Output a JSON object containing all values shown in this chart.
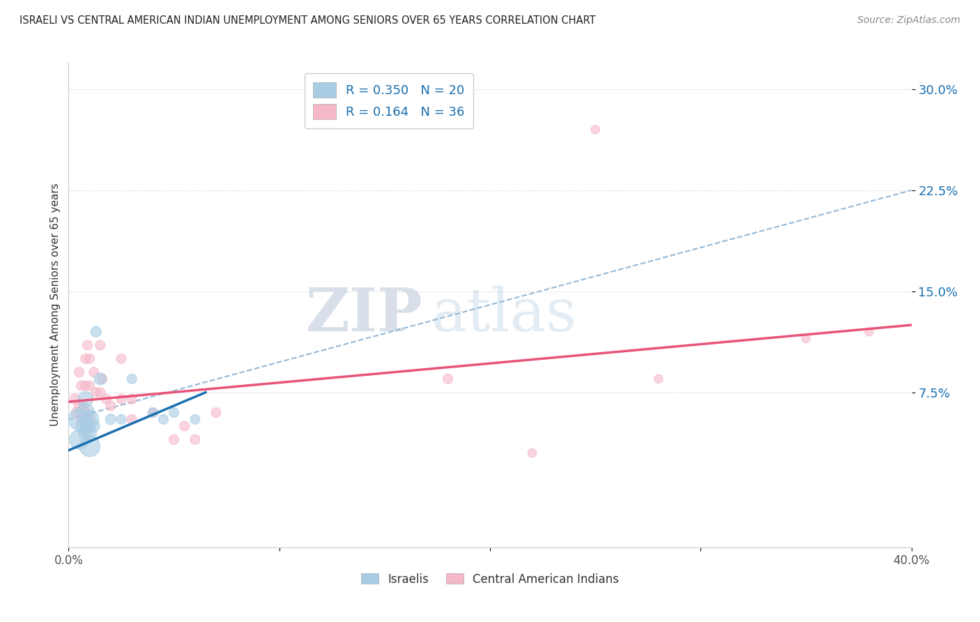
{
  "title": "ISRAELI VS CENTRAL AMERICAN INDIAN UNEMPLOYMENT AMONG SENIORS OVER 65 YEARS CORRELATION CHART",
  "source": "Source: ZipAtlas.com",
  "ylabel": "Unemployment Among Seniors over 65 years",
  "legend_israeli": "R = 0.350   N = 20",
  "legend_cai": "R = 0.164   N = 36",
  "legend_label1": "Israelis",
  "legend_label2": "Central American Indians",
  "xlim": [
    0.0,
    0.4
  ],
  "ylim": [
    -0.04,
    0.32
  ],
  "yticks": [
    0.075,
    0.15,
    0.225,
    0.3
  ],
  "ytick_labels": [
    "7.5%",
    "15.0%",
    "22.5%",
    "30.0%"
  ],
  "xticks": [
    0.0,
    0.1,
    0.2,
    0.3,
    0.4
  ],
  "xtick_labels": [
    "0.0%",
    "",
    "",
    "",
    "40.0%"
  ],
  "blue_scatter_color": "#a8cce4",
  "pink_scatter_color": "#f5b8c8",
  "blue_line_color": "#1a6faf",
  "pink_line_color": "#e8547a",
  "gray_dash_color": "#93b8d8",
  "watermark_zip": "ZIP",
  "watermark_atlas": "atlas",
  "israeli_x": [
    0.005,
    0.005,
    0.007,
    0.008,
    0.008,
    0.008,
    0.009,
    0.01,
    0.01,
    0.01,
    0.012,
    0.013,
    0.015,
    0.02,
    0.025,
    0.03,
    0.04,
    0.045,
    0.05,
    0.06
  ],
  "israeli_y": [
    0.055,
    0.04,
    0.05,
    0.045,
    0.06,
    0.07,
    0.05,
    0.055,
    0.045,
    0.035,
    0.05,
    0.12,
    0.085,
    0.055,
    0.055,
    0.085,
    0.06,
    0.055,
    0.06,
    0.055
  ],
  "israeli_sizes": [
    500,
    400,
    250,
    200,
    350,
    250,
    200,
    350,
    200,
    450,
    150,
    120,
    150,
    120,
    100,
    100,
    100,
    100,
    100,
    100
  ],
  "cai_x": [
    0.003,
    0.004,
    0.005,
    0.005,
    0.006,
    0.006,
    0.007,
    0.008,
    0.008,
    0.008,
    0.009,
    0.01,
    0.01,
    0.01,
    0.012,
    0.013,
    0.015,
    0.015,
    0.016,
    0.018,
    0.02,
    0.025,
    0.025,
    0.03,
    0.03,
    0.04,
    0.05,
    0.055,
    0.06,
    0.07,
    0.18,
    0.22,
    0.25,
    0.28,
    0.35,
    0.38
  ],
  "cai_y": [
    0.07,
    0.06,
    0.065,
    0.09,
    0.055,
    0.08,
    0.065,
    0.06,
    0.08,
    0.1,
    0.11,
    0.055,
    0.08,
    0.1,
    0.09,
    0.075,
    0.075,
    0.11,
    0.085,
    0.07,
    0.065,
    0.07,
    0.1,
    0.055,
    0.07,
    0.06,
    0.04,
    0.05,
    0.04,
    0.06,
    0.085,
    0.03,
    0.27,
    0.085,
    0.115,
    0.12
  ],
  "cai_sizes": [
    120,
    130,
    110,
    100,
    100,
    100,
    100,
    120,
    100,
    100,
    100,
    130,
    100,
    100,
    100,
    100,
    100,
    100,
    100,
    100,
    100,
    100,
    100,
    100,
    100,
    100,
    100,
    100,
    100,
    100,
    100,
    80,
    80,
    80,
    80,
    80
  ],
  "blue_line_x0": 0.0,
  "blue_line_y0": 0.032,
  "blue_line_x1": 0.065,
  "blue_line_y1": 0.075,
  "pink_line_x0": 0.0,
  "pink_line_y0": 0.068,
  "pink_line_x1": 0.4,
  "pink_line_y1": 0.125,
  "gray_line_x0": 0.0,
  "gray_line_y0": 0.055,
  "gray_line_x1": 0.4,
  "gray_line_y1": 0.225
}
